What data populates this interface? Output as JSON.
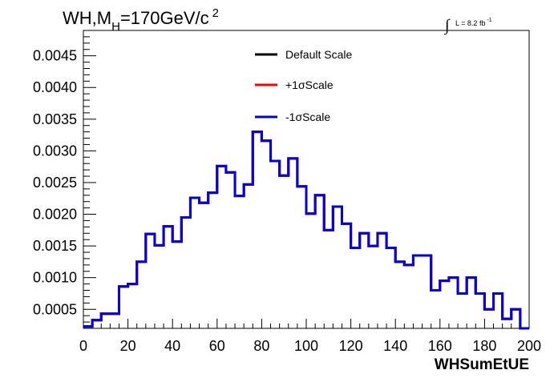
{
  "title": {
    "main": "WH,M",
    "sub": "H",
    "rest": "=170GeV/c",
    "sup": "2"
  },
  "lumi": {
    "integral": "∫",
    "text": "L = 8.2 fb",
    "sup": "-1"
  },
  "chart_data": {
    "type": "line",
    "subtype": "step-histogram",
    "xlabel": "WHSumEtUE",
    "ylabel": "",
    "xlim": [
      0,
      200
    ],
    "ylim": [
      0.0002,
      0.0049
    ],
    "x_ticks": [
      "0",
      "20",
      "40",
      "60",
      "80",
      "100",
      "120",
      "140",
      "160",
      "180",
      "200"
    ],
    "y_ticks": [
      "0.0005",
      "0.0010",
      "0.0015",
      "0.0020",
      "0.0025",
      "0.0030",
      "0.0035",
      "0.0040",
      "0.0045"
    ],
    "bin_width": 4,
    "bin_edges_start": 0,
    "series": [
      {
        "name": "Default Scale",
        "color": "#000000",
        "values": [
          0.00023,
          0.00033,
          0.00043,
          0.00043,
          0.00086,
          0.0009,
          0.00125,
          0.00169,
          0.00151,
          0.00181,
          0.00157,
          0.00195,
          0.00226,
          0.00218,
          0.00234,
          0.00276,
          0.00266,
          0.00229,
          0.00247,
          0.0033,
          0.00316,
          0.00284,
          0.00261,
          0.00288,
          0.00244,
          0.00201,
          0.0023,
          0.00175,
          0.00212,
          0.00185,
          0.00147,
          0.0017,
          0.0015,
          0.0017,
          0.00147,
          0.00125,
          0.0012,
          0.00135,
          0.00135,
          0.0008,
          0.00095,
          0.001,
          0.00075,
          0.001,
          0.00075,
          0.0005,
          0.00075,
          0.00035,
          0.0005,
          0.0002
        ]
      },
      {
        "name": "+1σScale",
        "color": "#ff0000",
        "values": [
          0.00023,
          0.00033,
          0.00043,
          0.00043,
          0.00086,
          0.0009,
          0.00125,
          0.00169,
          0.00151,
          0.00181,
          0.00157,
          0.00195,
          0.00226,
          0.00218,
          0.00234,
          0.00276,
          0.00266,
          0.00229,
          0.00247,
          0.0033,
          0.00316,
          0.00284,
          0.00261,
          0.00288,
          0.00244,
          0.00201,
          0.0023,
          0.00175,
          0.00212,
          0.00185,
          0.00147,
          0.0017,
          0.0015,
          0.0017,
          0.00147,
          0.00125,
          0.0012,
          0.00135,
          0.00135,
          0.0008,
          0.00095,
          0.001,
          0.00075,
          0.001,
          0.00075,
          0.0005,
          0.00075,
          0.00035,
          0.0005,
          0.0002
        ]
      },
      {
        "name": "-1σScale",
        "color": "#0000e0",
        "values": [
          0.00023,
          0.00033,
          0.00043,
          0.00043,
          0.00086,
          0.0009,
          0.00125,
          0.00169,
          0.00151,
          0.00181,
          0.00157,
          0.00195,
          0.00226,
          0.00218,
          0.00234,
          0.00276,
          0.00266,
          0.00229,
          0.00247,
          0.0033,
          0.00316,
          0.00284,
          0.00261,
          0.00288,
          0.00244,
          0.00201,
          0.0023,
          0.00175,
          0.00212,
          0.00185,
          0.00147,
          0.0017,
          0.0015,
          0.0017,
          0.00147,
          0.00125,
          0.0012,
          0.00135,
          0.00135,
          0.0008,
          0.00095,
          0.001,
          0.00075,
          0.001,
          0.00075,
          0.0005,
          0.00075,
          0.00035,
          0.0005,
          0.0002
        ]
      }
    ],
    "legend": [
      "Default Scale",
      "+1σScale",
      "-1σScale"
    ],
    "grid": false
  }
}
